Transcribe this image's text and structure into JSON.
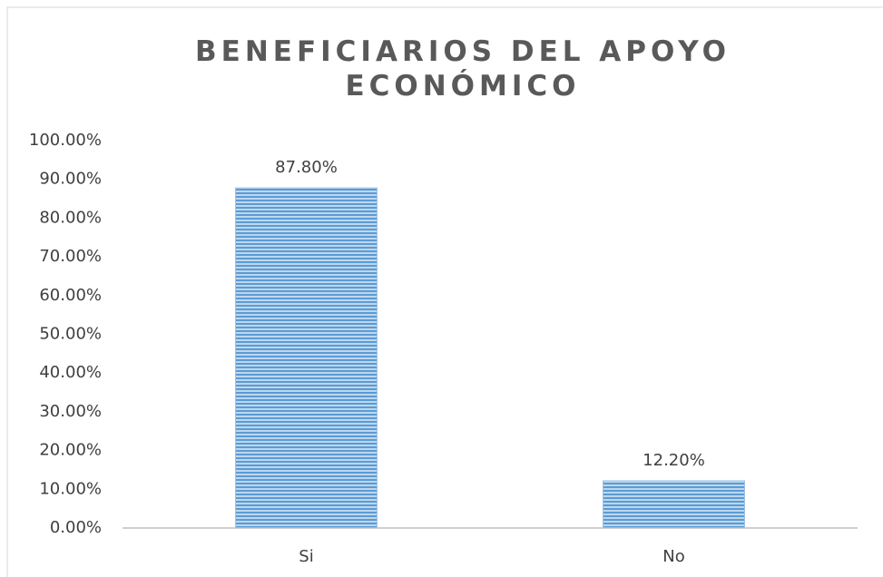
{
  "chart_data": {
    "type": "bar",
    "title": "BENEFICIARIOS DEL APOYO ECONÓMICO",
    "categories": [
      "Si",
      "No"
    ],
    "values": [
      87.8,
      12.2
    ],
    "value_labels": [
      "87.80%",
      "12.20%"
    ],
    "color": "#9dc3e6",
    "ylim": [
      0,
      100
    ],
    "yticks": [
      {
        "value": 0,
        "label": "0.00%"
      },
      {
        "value": 10,
        "label": "10.00%"
      },
      {
        "value": 20,
        "label": "20.00%"
      },
      {
        "value": 30,
        "label": "30.00%"
      },
      {
        "value": 40,
        "label": "40.00%"
      },
      {
        "value": 50,
        "label": "50.00%"
      },
      {
        "value": 60,
        "label": "60.00%"
      },
      {
        "value": 70,
        "label": "70.00%"
      },
      {
        "value": 80,
        "label": "80.00%"
      },
      {
        "value": 90,
        "label": "90.00%"
      },
      {
        "value": 100,
        "label": "100.00%"
      }
    ],
    "grid": false
  }
}
